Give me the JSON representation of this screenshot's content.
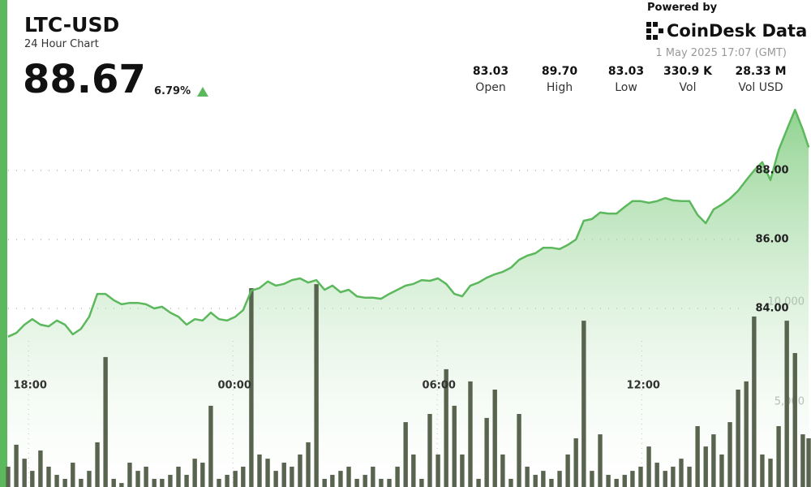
{
  "header": {
    "symbol": "LTC-USD",
    "subtitle": "24 Hour Chart",
    "price": "88.67",
    "change": "6.79%",
    "powered_by": "Powered by",
    "brand": "CoinDesk Data",
    "timestamp": "1 May 2025 17:07 (GMT)"
  },
  "stats": [
    {
      "value": "83.03",
      "label": "Open"
    },
    {
      "value": "89.70",
      "label": "High"
    },
    {
      "value": "83.03",
      "label": "Low"
    },
    {
      "value": "330.9 K",
      "label": "Vol"
    },
    {
      "value": "28.33 M",
      "label": "Vol USD"
    }
  ],
  "chart_data": {
    "type": "line",
    "x": [
      17.4,
      17.64,
      17.88,
      18.11,
      18.35,
      18.59,
      18.83,
      19.07,
      19.3,
      19.54,
      19.78,
      20.02,
      20.26,
      20.5,
      20.73,
      20.97,
      21.21,
      21.45,
      21.69,
      21.92,
      22.16,
      22.4,
      22.64,
      22.88,
      23.11,
      23.35,
      23.59,
      23.83,
      24.07,
      24.3,
      24.54,
      24.78,
      25.02,
      25.26,
      25.5,
      25.73,
      25.97,
      26.21,
      26.45,
      26.69,
      26.92,
      27.16,
      27.4,
      27.64,
      27.88,
      28.11,
      28.35,
      28.59,
      28.83,
      29.07,
      29.3,
      29.54,
      29.78,
      30.02,
      30.26,
      30.5,
      30.73,
      30.97,
      31.21,
      31.45,
      31.69,
      31.92,
      32.16,
      32.4,
      32.64,
      32.88,
      33.11,
      33.35,
      33.59,
      33.83,
      34.07,
      34.3,
      34.54,
      34.78,
      35.02,
      35.26,
      35.5,
      35.73,
      35.97,
      36.21,
      36.45,
      36.69,
      36.92,
      37.16,
      37.4,
      37.64,
      37.88,
      38.11,
      38.35,
      38.59,
      38.83,
      39.07,
      39.3,
      39.54,
      39.78,
      40.02,
      40.26,
      40.5,
      40.73,
      40.9
    ],
    "series": [
      {
        "name": "Price",
        "color": "#5cb85c",
        "values": [
          83.18,
          83.29,
          83.53,
          83.69,
          83.53,
          83.48,
          83.65,
          83.53,
          83.25,
          83.41,
          83.76,
          84.42,
          84.42,
          84.24,
          84.12,
          84.16,
          84.16,
          84.12,
          84.0,
          84.05,
          83.88,
          83.76,
          83.53,
          83.69,
          83.65,
          83.88,
          83.69,
          83.65,
          83.76,
          83.95,
          84.52,
          84.59,
          84.78,
          84.66,
          84.71,
          84.82,
          84.87,
          84.75,
          84.82,
          84.54,
          84.66,
          84.47,
          84.54,
          84.35,
          84.31,
          84.31,
          84.28,
          84.42,
          84.54,
          84.66,
          84.71,
          84.82,
          84.8,
          84.87,
          84.71,
          84.42,
          84.35,
          84.66,
          84.75,
          84.89,
          84.99,
          85.06,
          85.18,
          85.41,
          85.53,
          85.6,
          85.76,
          85.76,
          85.72,
          85.84,
          86.0,
          86.54,
          86.59,
          86.78,
          86.75,
          86.75,
          86.94,
          87.11,
          87.11,
          87.06,
          87.11,
          87.2,
          87.13,
          87.11,
          87.11,
          86.71,
          86.47,
          86.87,
          87.01,
          87.18,
          87.41,
          87.72,
          88.0,
          88.24,
          87.72,
          88.59,
          89.18,
          89.76,
          89.18,
          88.67
        ]
      },
      {
        "name": "Vol",
        "type": "bar",
        "axis": "y2",
        "color": "#59644f",
        "values": [
          1750,
          2850,
          2150,
          1540,
          2560,
          1750,
          1340,
          1140,
          1950,
          1140,
          1540,
          2970,
          7240,
          1140,
          930,
          1950,
          1540,
          1750,
          1140,
          1140,
          1340,
          1750,
          1340,
          2150,
          1950,
          4800,
          1140,
          1340,
          1540,
          1750,
          10690,
          2360,
          2150,
          1540,
          1950,
          1750,
          2360,
          2970,
          10890,
          1140,
          1340,
          1540,
          1750,
          1140,
          1340,
          1750,
          1140,
          1140,
          1750,
          3980,
          2360,
          1140,
          4390,
          2360,
          6630,
          4800,
          2360,
          6020,
          1140,
          4190,
          5610,
          2360,
          1140,
          4390,
          1750,
          1340,
          1540,
          1140,
          1540,
          2360,
          3170,
          9060,
          1540,
          3370,
          1340,
          1140,
          1340,
          1540,
          1750,
          2760,
          1950,
          1540,
          1750,
          2150,
          1750,
          3780,
          2760,
          3370,
          2360,
          3980,
          5610,
          6020,
          9270,
          2360,
          2150,
          3780,
          9060,
          7440,
          3370,
          3170
        ]
      }
    ],
    "xlim": [
      17.4,
      40.97
    ],
    "xticks": [
      {
        "value": 18,
        "label": "18:00"
      },
      {
        "value": 24,
        "label": "00:00"
      },
      {
        "value": 30,
        "label": "06:00"
      },
      {
        "value": 36,
        "label": "12:00"
      }
    ],
    "ylim": [
      78.4,
      92.94
    ],
    "yticks": [
      {
        "value": 84,
        "label": "84.00"
      },
      {
        "value": 86,
        "label": "86.00"
      },
      {
        "value": 88,
        "label": "88.00"
      }
    ],
    "y2lim": [
      0,
      25120
    ],
    "y2ticks": [
      {
        "value": 5000,
        "label": "5,000"
      },
      {
        "value": 10000,
        "label": "10,000"
      }
    ],
    "grid": true
  }
}
